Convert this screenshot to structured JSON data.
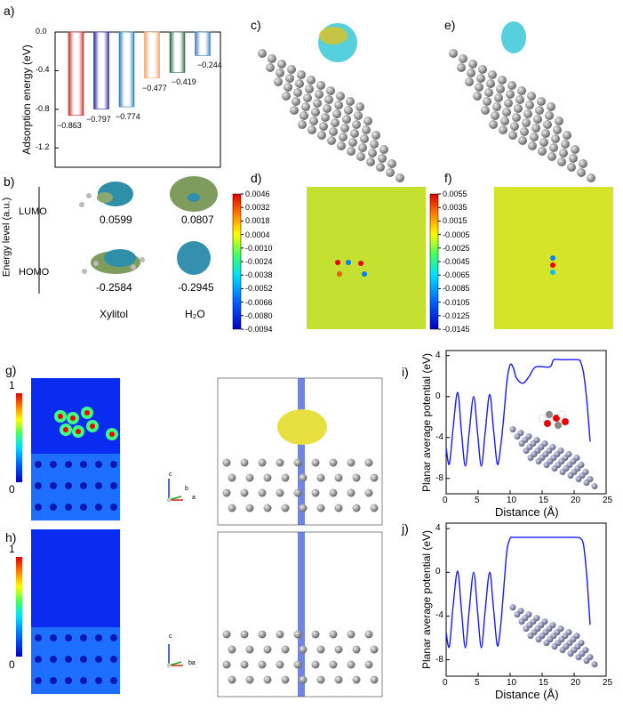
{
  "panel_labels": {
    "a": "a)",
    "b": "b)",
    "c": "c)",
    "d": "d)",
    "e": "e)",
    "f": "f)",
    "g": "g)",
    "h": "h)",
    "i": "i)",
    "j": "j)"
  },
  "chart_data": [
    {
      "id": "a",
      "type": "bar",
      "ylabel": "Adsorption energy (eV)",
      "ylim": [
        -1.4,
        0
      ],
      "yticks": [
        "0.0",
        "-0.4",
        "-0.8",
        "-1.2"
      ],
      "ytick_values": [
        0,
        -0.4,
        -0.8,
        -1.2
      ],
      "values": [
        -0.863,
        -0.797,
        -0.774,
        -0.477,
        -0.419,
        -0.244
      ],
      "data_labels": [
        "−0.863",
        "−0.797",
        "−0.774",
        "−0.477",
        "−0.419",
        "−0.244"
      ],
      "colors": [
        "#d62728",
        "#2a2aa8",
        "#2c7fb8",
        "#f4a46a",
        "#2e6b45",
        "#3a7fc0"
      ]
    },
    {
      "id": "i",
      "type": "line",
      "xlabel": "Distance (Å)",
      "ylabel": "Planar average potential (eV)",
      "xlim": [
        0,
        25
      ],
      "ylim": [
        -9.5,
        4.5
      ],
      "xticks": [
        "0",
        "5",
        "10",
        "15",
        "20",
        "25"
      ],
      "yticks": [
        "4",
        "0",
        "-4",
        "-8"
      ],
      "color": "#1a1aff",
      "x": [
        0,
        0.5,
        1.1,
        1.8,
        2.4,
        3,
        3.6,
        4.3,
        4.9,
        5.5,
        6.1,
        6.8,
        7.4,
        8,
        8.5,
        9,
        9.5,
        10,
        10.5,
        11,
        12,
        13,
        14,
        16.2,
        16.8,
        18,
        20.5,
        21,
        21.5,
        22,
        22.5
      ],
      "y": [
        -5,
        -6.6,
        -3,
        0.4,
        -3.5,
        -6.8,
        -3.5,
        0,
        -3.5,
        -6.8,
        -3.5,
        0.2,
        -3.2,
        -6.6,
        -5,
        -2,
        1.5,
        3.1,
        2.8,
        1.8,
        1.3,
        2.0,
        2.9,
        2.9,
        3.6,
        3.6,
        3.6,
        3.4,
        2.2,
        -0.5,
        -4.4
      ]
    },
    {
      "id": "j",
      "type": "line",
      "xlabel": "Distance (Å)",
      "ylabel": "Planar average potential (eV)",
      "xlim": [
        0,
        25
      ],
      "ylim": [
        -9.5,
        4.5
      ],
      "xticks": [
        "0",
        "5",
        "10",
        "15",
        "20",
        "25"
      ],
      "yticks": [
        "4",
        "0",
        "-4",
        "-8"
      ],
      "color": "#1a1aff",
      "x": [
        0,
        0.5,
        1.1,
        1.8,
        2.4,
        3,
        3.6,
        4.3,
        4.9,
        5.5,
        6.1,
        6.8,
        7.4,
        8,
        8.5,
        9,
        9.5,
        10,
        10.5,
        12,
        16,
        20,
        21,
        21.5,
        22,
        22.5
      ],
      "y": [
        -5.5,
        -6.8,
        -3,
        0.1,
        -3.5,
        -6.9,
        -3.5,
        0,
        -3.5,
        -6.9,
        -3.5,
        0,
        -3.3,
        -6.7,
        -5,
        -1.5,
        2,
        3.1,
        3.2,
        3.2,
        3.2,
        3.2,
        3.1,
        2.4,
        -0.5,
        -4.8
      ]
    }
  ],
  "panel_b": {
    "ylabel": "Energy level (a.u.)",
    "lumo": "LUMO",
    "homo": "HOMO",
    "xylitol_lumo": "0.0599",
    "water_lumo": "0.0807",
    "xylitol_homo": "-0.2584",
    "water_homo": "-0.2945",
    "xylitol": "Xylitol",
    "water": "H₂O"
  },
  "colorbar_d": [
    "0.0046",
    "0.0032",
    "0.0018",
    "0.0004",
    "-0.0010",
    "-0.0024",
    "-0.0038",
    "-0.0052",
    "-0.0066",
    "-0.0080",
    "-0.0094"
  ],
  "colorbar_f": [
    "0.0055",
    "0.0035",
    "0.0015",
    "-0.0005",
    "-0.0025",
    "-0.0045",
    "-0.0065",
    "-0.0085",
    "-0.0105",
    "-0.0125",
    "-0.0145"
  ],
  "colorbar_g": {
    "max": "1",
    "min": "0"
  },
  "colorbar_h": {
    "max": "1",
    "min": "0"
  },
  "axes_g": {
    "c": "c",
    "b": "b",
    "a": "a"
  },
  "axes_h": {
    "c": "c",
    "ba": "ba"
  }
}
